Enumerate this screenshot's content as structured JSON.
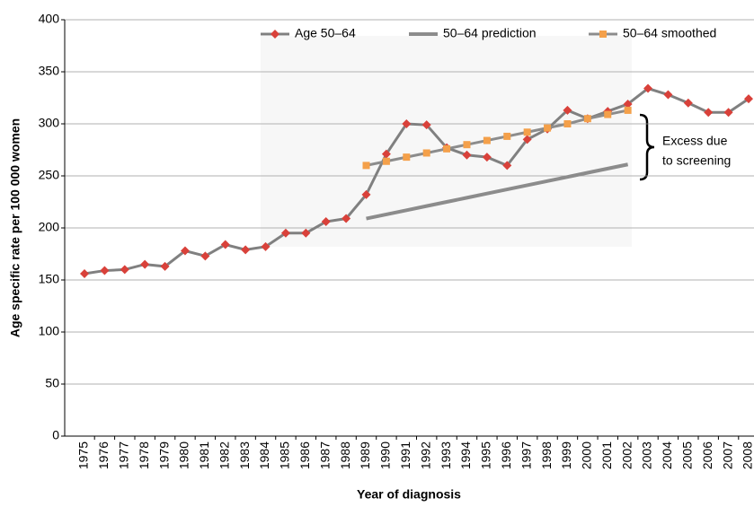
{
  "chart_data": {
    "type": "line",
    "x_label": "Year of diagnosis",
    "y_label": "Age specific rate per 100 000 women",
    "annotation": [
      "Excess due",
      "to screening"
    ],
    "categories": [
      "1975",
      "1976",
      "1977",
      "1978",
      "1979",
      "1980",
      "1981",
      "1982",
      "1983",
      "1984",
      "1985",
      "1986",
      "1987",
      "1988",
      "1989",
      "1990",
      "1991",
      "1992",
      "1993",
      "1994",
      "1995",
      "1996",
      "1997",
      "1998",
      "1999",
      "2000",
      "2001",
      "2002",
      "2003",
      "2004",
      "2005",
      "2006",
      "2007",
      "2008"
    ],
    "ylim": [
      0,
      400
    ],
    "yticks": [
      0,
      50,
      100,
      150,
      200,
      250,
      300,
      350,
      400
    ],
    "grid": true,
    "series": [
      {
        "name": "Age 50–64",
        "color": "#808080",
        "marker": "diamond",
        "marker_color": "#d9413a",
        "values": [
          156,
          159,
          160,
          165,
          163,
          178,
          173,
          184,
          179,
          182,
          195,
          195,
          206,
          209,
          232,
          271,
          300,
          299,
          277,
          270,
          268,
          260,
          285,
          295,
          313,
          305,
          312,
          319,
          334,
          328,
          320,
          311,
          311,
          324
        ]
      },
      {
        "name": "50–64 prediction",
        "color": "#8c8c8c",
        "marker": "none",
        "marker_color": "#8c8c8c",
        "values": [
          null,
          null,
          null,
          null,
          null,
          null,
          null,
          null,
          null,
          null,
          null,
          null,
          null,
          null,
          209,
          213,
          217,
          221,
          225,
          229,
          233,
          237,
          241,
          245,
          249,
          253,
          257,
          261,
          null,
          null,
          null,
          null,
          null,
          null
        ]
      },
      {
        "name": "50–64 smoothed",
        "color": "#8c8c8c",
        "marker": "square",
        "marker_color": "#f4a04a",
        "values": [
          null,
          null,
          null,
          null,
          null,
          null,
          null,
          null,
          null,
          null,
          null,
          null,
          null,
          null,
          260,
          264,
          268,
          272,
          276,
          280,
          284,
          288,
          292,
          296,
          300,
          305,
          309,
          313,
          null,
          null,
          null,
          null,
          null,
          null
        ]
      }
    ]
  }
}
